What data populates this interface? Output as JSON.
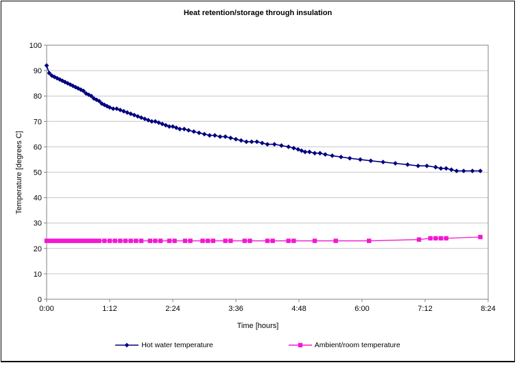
{
  "chart_data": {
    "type": "line",
    "title": "Heat retention/storage through insulation",
    "xlabel": "Time [hours]",
    "ylabel": "Temperature [degrees C]",
    "x_unit": "minutes",
    "xlim": [
      0,
      504
    ],
    "ylim": [
      0,
      100
    ],
    "x_ticks": [
      {
        "value": 0,
        "label": "0:00"
      },
      {
        "value": 72,
        "label": "1:12"
      },
      {
        "value": 144,
        "label": "2:24"
      },
      {
        "value": 216,
        "label": "3:36"
      },
      {
        "value": 288,
        "label": "4:48"
      },
      {
        "value": 360,
        "label": "6:00"
      },
      {
        "value": 432,
        "label": "7:12"
      },
      {
        "value": 504,
        "label": "8:24"
      }
    ],
    "y_ticks": [
      0,
      10,
      20,
      30,
      40,
      50,
      60,
      70,
      80,
      90,
      100
    ],
    "grid": "horizontal",
    "grid_color": "#c6c6c6",
    "axis_color": "#808080",
    "plot_bg": "#ffffff",
    "legend_position": "bottom",
    "series": [
      {
        "name": "Hot water temperature",
        "color": "#000080",
        "marker": "diamond",
        "points": [
          [
            0,
            92
          ],
          [
            3,
            89
          ],
          [
            6,
            88
          ],
          [
            9,
            87.5
          ],
          [
            12,
            87
          ],
          [
            15,
            86.5
          ],
          [
            18,
            86
          ],
          [
            21,
            85.5
          ],
          [
            24,
            85
          ],
          [
            27,
            84.5
          ],
          [
            30,
            84
          ],
          [
            33,
            83.5
          ],
          [
            36,
            83
          ],
          [
            39,
            82.5
          ],
          [
            42,
            82
          ],
          [
            45,
            81
          ],
          [
            48,
            80.5
          ],
          [
            51,
            80
          ],
          [
            54,
            79
          ],
          [
            57,
            78.5
          ],
          [
            60,
            78
          ],
          [
            63,
            77
          ],
          [
            66,
            76.5
          ],
          [
            69,
            76
          ],
          [
            72,
            75.5
          ],
          [
            76,
            75
          ],
          [
            80,
            75
          ],
          [
            84,
            74.5
          ],
          [
            88,
            74
          ],
          [
            92,
            73.5
          ],
          [
            96,
            73
          ],
          [
            100,
            72.5
          ],
          [
            104,
            72
          ],
          [
            108,
            71.5
          ],
          [
            112,
            71
          ],
          [
            116,
            70.5
          ],
          [
            120,
            70
          ],
          [
            124,
            70
          ],
          [
            128,
            69.5
          ],
          [
            132,
            69
          ],
          [
            136,
            68.5
          ],
          [
            140,
            68
          ],
          [
            144,
            68
          ],
          [
            148,
            67.5
          ],
          [
            152,
            67
          ],
          [
            157,
            67
          ],
          [
            162,
            66.5
          ],
          [
            168,
            66
          ],
          [
            174,
            65.5
          ],
          [
            180,
            65
          ],
          [
            186,
            64.5
          ],
          [
            192,
            64.5
          ],
          [
            198,
            64
          ],
          [
            204,
            64
          ],
          [
            210,
            63.5
          ],
          [
            216,
            63
          ],
          [
            222,
            62.5
          ],
          [
            228,
            62
          ],
          [
            234,
            62
          ],
          [
            240,
            62
          ],
          [
            246,
            61.5
          ],
          [
            252,
            61
          ],
          [
            260,
            61
          ],
          [
            268,
            60.5
          ],
          [
            276,
            60
          ],
          [
            282,
            59.5
          ],
          [
            287,
            59
          ],
          [
            291,
            58.5
          ],
          [
            295,
            58
          ],
          [
            300,
            58
          ],
          [
            306,
            57.5
          ],
          [
            312,
            57.5
          ],
          [
            318,
            57
          ],
          [
            326,
            56.5
          ],
          [
            336,
            56
          ],
          [
            346,
            55.5
          ],
          [
            358,
            55
          ],
          [
            370,
            54.5
          ],
          [
            384,
            54
          ],
          [
            398,
            53.5
          ],
          [
            412,
            53
          ],
          [
            424,
            52.5
          ],
          [
            434,
            52.5
          ],
          [
            444,
            52
          ],
          [
            450,
            51.5
          ],
          [
            456,
            51.5
          ],
          [
            462,
            51
          ],
          [
            468,
            50.5
          ],
          [
            476,
            50.5
          ],
          [
            486,
            50.5
          ],
          [
            495,
            50.5
          ]
        ]
      },
      {
        "name": "Ambient/room temperature",
        "color": "#f318d0",
        "marker": "square",
        "points": [
          [
            0,
            23
          ],
          [
            3,
            23
          ],
          [
            6,
            23
          ],
          [
            9,
            23
          ],
          [
            12,
            23
          ],
          [
            15,
            23
          ],
          [
            18,
            23
          ],
          [
            21,
            23
          ],
          [
            24,
            23
          ],
          [
            27,
            23
          ],
          [
            30,
            23
          ],
          [
            33,
            23
          ],
          [
            36,
            23
          ],
          [
            39,
            23
          ],
          [
            42,
            23
          ],
          [
            45,
            23
          ],
          [
            48,
            23
          ],
          [
            51,
            23
          ],
          [
            54,
            23
          ],
          [
            57,
            23
          ],
          [
            60,
            23
          ],
          [
            66,
            23
          ],
          [
            72,
            23
          ],
          [
            78,
            23
          ],
          [
            84,
            23
          ],
          [
            90,
            23
          ],
          [
            96,
            23
          ],
          [
            102,
            23
          ],
          [
            108,
            23
          ],
          [
            118,
            23
          ],
          [
            124,
            23
          ],
          [
            130,
            23
          ],
          [
            140,
            23
          ],
          [
            146,
            23
          ],
          [
            158,
            23
          ],
          [
            164,
            23
          ],
          [
            178,
            23
          ],
          [
            184,
            23
          ],
          [
            190,
            23
          ],
          [
            204,
            23
          ],
          [
            210,
            23
          ],
          [
            226,
            23
          ],
          [
            232,
            23
          ],
          [
            252,
            23
          ],
          [
            258,
            23
          ],
          [
            276,
            23
          ],
          [
            282,
            23
          ],
          [
            306,
            23
          ],
          [
            330,
            23
          ],
          [
            368,
            23
          ],
          [
            425,
            23.5
          ],
          [
            438,
            24
          ],
          [
            444,
            24
          ],
          [
            450,
            24
          ],
          [
            456,
            24
          ],
          [
            495,
            24.5
          ]
        ]
      }
    ]
  }
}
